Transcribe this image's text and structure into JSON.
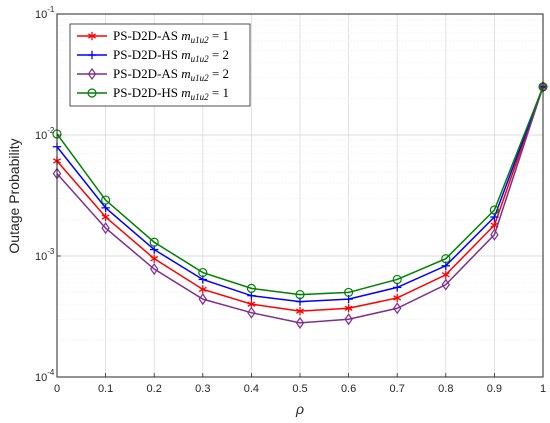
{
  "chart_data": {
    "type": "line",
    "xlabel": "ρ",
    "ylabel": "Outage Probability",
    "xlim": [
      0,
      1
    ],
    "ylim": [
      0.0001,
      0.1
    ],
    "yscale": "log",
    "grid": true,
    "legend_position": "top-left",
    "x_ticks": [
      "0",
      "0.1",
      "0.2",
      "0.3",
      "0.4",
      "0.5",
      "0.6",
      "0.7",
      "0.8",
      "0.9",
      "1"
    ],
    "y_tick_labels": [
      {
        "base": "10",
        "exp": "-4",
        "value": 0.0001
      },
      {
        "base": "10",
        "exp": "-3",
        "value": 0.001
      },
      {
        "base": "10",
        "exp": "-2",
        "value": 0.01
      },
      {
        "base": "10",
        "exp": "-1",
        "value": 0.1
      }
    ],
    "x": [
      0,
      0.1,
      0.2,
      0.3,
      0.4,
      0.5,
      0.6,
      0.7,
      0.8,
      0.9,
      1
    ],
    "series": [
      {
        "name": "PS-D2D-AS",
        "m_sub": "u1u2",
        "m_val": "1",
        "color": "#ff0000",
        "marker": "asterisk",
        "values": [
          0.0061,
          0.0021,
          0.00095,
          0.00053,
          0.0004,
          0.00035,
          0.00037,
          0.00045,
          0.0007,
          0.0018,
          0.025
        ]
      },
      {
        "name": "PS-D2D-HS",
        "m_sub": "u1u2",
        "m_val": "2",
        "color": "#0000ff",
        "marker": "plus",
        "values": [
          0.008,
          0.0025,
          0.00113,
          0.00064,
          0.00047,
          0.00042,
          0.00044,
          0.00055,
          0.00083,
          0.0021,
          0.025
        ]
      },
      {
        "name": "PS-D2D-AS",
        "m_sub": "u1u2",
        "m_val": "2",
        "color": "#7e2f8e",
        "marker": "diamond",
        "values": [
          0.0048,
          0.0017,
          0.00078,
          0.00044,
          0.00034,
          0.00028,
          0.0003,
          0.00037,
          0.00058,
          0.0015,
          0.025
        ]
      },
      {
        "name": "PS-D2D-HS",
        "m_sub": "u1u2",
        "m_val": "1",
        "color": "#008000",
        "marker": "circle",
        "values": [
          0.0102,
          0.0029,
          0.0013,
          0.00073,
          0.00054,
          0.00048,
          0.0005,
          0.00064,
          0.00095,
          0.0024,
          0.025
        ]
      }
    ]
  }
}
